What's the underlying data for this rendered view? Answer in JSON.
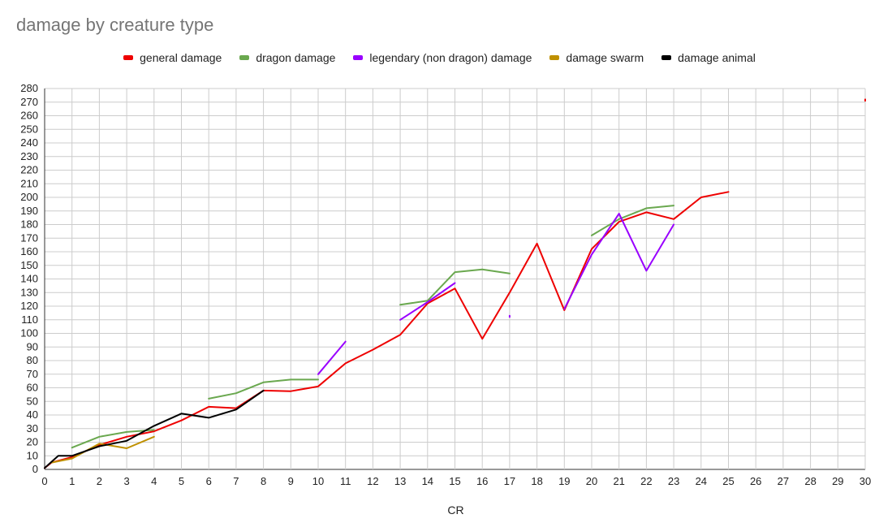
{
  "chart_data": {
    "type": "line",
    "title": "damage by creature type",
    "xlabel": "CR",
    "ylabel": "",
    "xlim": [
      0,
      30
    ],
    "ylim": [
      0,
      280
    ],
    "x_ticks": [
      0,
      1,
      2,
      3,
      4,
      5,
      6,
      7,
      8,
      9,
      10,
      11,
      12,
      13,
      14,
      15,
      16,
      17,
      18,
      19,
      20,
      21,
      22,
      23,
      24,
      25,
      26,
      27,
      28,
      29,
      30
    ],
    "y_ticks": [
      0,
      10,
      20,
      30,
      40,
      50,
      60,
      70,
      80,
      90,
      100,
      110,
      120,
      130,
      140,
      150,
      160,
      170,
      180,
      190,
      200,
      210,
      220,
      230,
      240,
      250,
      260,
      270,
      280
    ],
    "grid": true,
    "legend_position": "top",
    "series": [
      {
        "name": "general damage",
        "color": "#ee0000",
        "segments": [
          [
            [
              0,
              1
            ],
            [
              0.25,
              5
            ],
            [
              1,
              9
            ],
            [
              2,
              18
            ],
            [
              3,
              24
            ],
            [
              4,
              28
            ],
            [
              5,
              36
            ],
            [
              6,
              46
            ],
            [
              7,
              45
            ],
            [
              8,
              58
            ],
            [
              9,
              57.5
            ],
            [
              10,
              61
            ],
            [
              11,
              78
            ],
            [
              12,
              88
            ],
            [
              13,
              99
            ],
            [
              14,
              122
            ],
            [
              15,
              133
            ],
            [
              16,
              96
            ],
            [
              17,
              130
            ],
            [
              18,
              166
            ],
            [
              19,
              117
            ],
            [
              20,
              162
            ],
            [
              21,
              182
            ],
            [
              22,
              189
            ],
            [
              23,
              184
            ],
            [
              24,
              200
            ],
            [
              25,
              204
            ]
          ],
          [
            [
              30,
              272
            ],
            [
              30,
              271
            ]
          ]
        ]
      },
      {
        "name": "dragon damage",
        "color": "#6aa84f",
        "segments": [
          [
            [
              1,
              16
            ],
            [
              2,
              24
            ],
            [
              3,
              27.5
            ],
            [
              4,
              29
            ]
          ],
          [
            [
              6,
              52
            ],
            [
              7,
              56
            ],
            [
              8,
              64
            ],
            [
              9,
              66
            ],
            [
              10,
              66
            ]
          ],
          [
            [
              13,
              121
            ],
            [
              14,
              124
            ],
            [
              15,
              145
            ],
            [
              16,
              147
            ],
            [
              17,
              144
            ]
          ],
          [
            [
              20,
              172
            ],
            [
              21,
              184
            ],
            [
              22,
              192
            ],
            [
              23,
              194
            ]
          ]
        ]
      },
      {
        "name": "legendary (non dragon) damage",
        "color": "#9900ff",
        "segments": [
          [
            [
              10,
              70
            ],
            [
              11,
              94
            ]
          ],
          [
            [
              13,
              110
            ],
            [
              14,
              123
            ],
            [
              15,
              137
            ]
          ],
          [
            [
              17,
              113
            ],
            [
              17,
              112
            ]
          ],
          [
            [
              19,
              118
            ],
            [
              20,
              158
            ],
            [
              21,
              188
            ],
            [
              22,
              146
            ],
            [
              23,
              180
            ]
          ]
        ]
      },
      {
        "name": "damage swarm",
        "color": "#bf9000",
        "segments": [
          [
            [
              0.25,
              5
            ],
            [
              1,
              8
            ],
            [
              2,
              19
            ],
            [
              3,
              15.5
            ],
            [
              4,
              24
            ]
          ]
        ]
      },
      {
        "name": "damage animal",
        "color": "#000000",
        "segments": [
          [
            [
              0,
              1
            ],
            [
              0.5,
              10
            ],
            [
              1,
              10
            ],
            [
              2,
              17
            ],
            [
              3,
              21
            ],
            [
              4,
              32
            ],
            [
              5,
              41
            ],
            [
              6,
              38
            ],
            [
              7,
              44
            ],
            [
              8,
              58
            ]
          ]
        ]
      }
    ]
  }
}
